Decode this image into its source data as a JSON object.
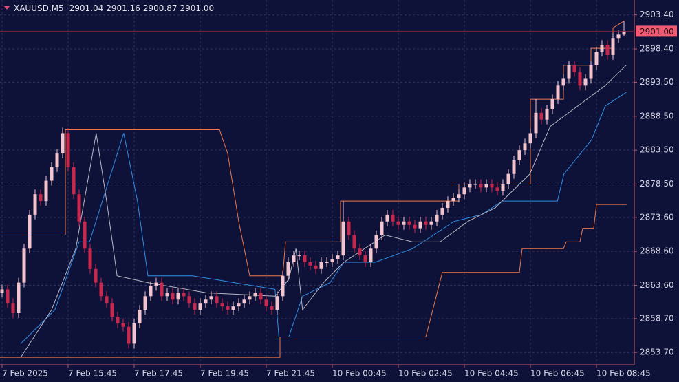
{
  "chart_data": {
    "type": "candlestick",
    "title": "XAUUSD,M5",
    "quote": [
      2901.04,
      2901.16,
      2900.87,
      {
        "value": 2901,
        "label": "2901.00"
      }
    ],
    "last_price": {
      "value": 2901,
      "label": "2901.00"
    },
    "up_color": "#f2c4d0",
    "down_color": "#c8284f",
    "grid": true,
    "xlim": [
      -0.375,
      114.875
    ],
    "ylim": [
      2851.9,
      2905.6
    ],
    "xticks": [
      {
        "value": 0,
        "label": "7 Feb 2025"
      },
      {
        "value": 12,
        "label": "7 Feb 15:45"
      },
      {
        "value": 24,
        "label": "7 Feb 17:45"
      },
      {
        "value": 36,
        "label": "7 Feb 19:45"
      },
      {
        "value": 48,
        "label": "7 Feb 21:45"
      },
      {
        "value": 60,
        "label": "10 Feb 00:45"
      },
      {
        "value": 72,
        "label": "10 Feb 02:45"
      },
      {
        "value": 84,
        "label": "10 Feb 04:45"
      },
      {
        "value": 96,
        "label": "10 Feb 06:45"
      },
      {
        "value": 108,
        "label": "10 Feb 08:45"
      }
    ],
    "yticks": [
      {
        "value": 2903.4,
        "label": "2903.40"
      },
      {
        "value": 2898.4,
        "label": "2898.40"
      },
      {
        "value": 2893.5,
        "label": "2893.50"
      },
      {
        "value": 2888.5,
        "label": "2888.50"
      },
      {
        "value": 2883.5,
        "label": "2883.50"
      },
      {
        "value": 2878.5,
        "label": "2878.50"
      },
      {
        "value": 2873.6,
        "label": "2873.60"
      },
      {
        "value": 2868.6,
        "label": "2868.60"
      },
      {
        "value": 2863.6,
        "label": "2863.60"
      },
      {
        "value": 2858.7,
        "label": "2858.70"
      },
      {
        "value": 2853.7,
        "label": "2853.70"
      }
    ],
    "open": [
      2862.5,
      2863,
      2861,
      2859.5,
      2864,
      2869,
      2874,
      2877,
      2876,
      2879,
      2881,
      2883,
      2886,
      2881,
      2877,
      2873,
      2869,
      2866,
      2864,
      2862,
      2861,
      2859,
      2858,
      2857.5,
      2855,
      2858,
      2860,
      2862,
      2863.5,
      2864,
      2862,
      2862.5,
      2861.5,
      2862.5,
      2862,
      2861,
      2860,
      2861,
      2861.5,
      2862,
      2861,
      2860.5,
      2860,
      2860.5,
      2861,
      2861.5,
      2862,
      2862.5,
      2861.5,
      2860.5,
      2860,
      2862,
      2865,
      2867,
      2868,
      2868,
      2867,
      2866.5,
      2866,
      2867,
      2867,
      2867.5,
      2868,
      2873,
      2871,
      2869,
      2868,
      2867,
      2869,
      2871,
      2873,
      2874,
      2873,
      2872.5,
      2873,
      2872.5,
      2872,
      2873,
      2872.5,
      2873,
      2874,
      2875,
      2876,
      2876.5,
      2877,
      2878,
      2878.5,
      2878.5,
      2878,
      2878.5,
      2878,
      2877.5,
      2878.5,
      2880,
      2882,
      2883.5,
      2884.5,
      2886,
      2889,
      2888,
      2889.5,
      2891,
      2893,
      2894,
      2896,
      2895,
      2893,
      2894,
      2896,
      2898,
      2899,
      2897.5,
      2900,
      2900.5
    ],
    "high": [
      2863.7,
      2863.7,
      2861.7,
      2864.7,
      2869.7,
      2874.7,
      2877.7,
      2877.7,
      2879.7,
      2881.7,
      2883.7,
      2886.8,
      2886.7,
      2881.7,
      2877.7,
      2873.7,
      2869.7,
      2866.7,
      2864.7,
      2862.7,
      2861.7,
      2859.7,
      2858.7,
      2858.2,
      2858.7,
      2860.7,
      2862.7,
      2864.2,
      2864.7,
      2864.7,
      2863.2,
      2863.2,
      2863.2,
      2863.2,
      2862.7,
      2861.7,
      2861.7,
      2862.2,
      2862.7,
      2862.7,
      2861.7,
      2861.2,
      2861.2,
      2861.7,
      2862.2,
      2862.7,
      2863.2,
      2863.2,
      2862.2,
      2861.2,
      2862.7,
      2865.7,
      2867.7,
      2868.7,
      2868.7,
      2868.7,
      2867.7,
      2867.2,
      2867.7,
      2867.7,
      2868.2,
      2868.7,
      2876,
      2873.7,
      2871.7,
      2869.7,
      2868.7,
      2869.7,
      2871.7,
      2873.7,
      2874.7,
      2874.7,
      2873.7,
      2873.7,
      2873.7,
      2873.2,
      2873.7,
      2873.7,
      2873.7,
      2874.7,
      2875.7,
      2876.7,
      2877.2,
      2877.7,
      2878.7,
      2879.2,
      2879.2,
      2879.2,
      2879.2,
      2879.2,
      2878.7,
      2879.2,
      2880.7,
      2882.7,
      2884.2,
      2885.2,
      2886.7,
      2891,
      2889.7,
      2890.2,
      2891.7,
      2893.7,
      2894.7,
      2896.7,
      2896.7,
      2895.7,
      2894.7,
      2896.7,
      2898.7,
      2899.7,
      2899.7,
      2900.7,
      2901.2,
      2902.5
    ],
    "low": [
      2861.8,
      2860.3,
      2858.8,
      2858.8,
      2863.3,
      2868.3,
      2873.3,
      2875.3,
      2875.3,
      2878.3,
      2880.3,
      2882.3,
      2880.3,
      2876.3,
      2872.3,
      2868.3,
      2865.3,
      2863.3,
      2861.3,
      2860.3,
      2858.3,
      2857.3,
      2856.8,
      2854.3,
      2854.3,
      2857.3,
      2859.3,
      2861.3,
      2862.8,
      2861.3,
      2861.3,
      2860.8,
      2860.8,
      2861.3,
      2860.3,
      2859.3,
      2859.3,
      2860.3,
      2860.8,
      2860.3,
      2859.8,
      2859.3,
      2859.3,
      2859.8,
      2860.3,
      2860.8,
      2861.3,
      2860.8,
      2859.8,
      2859.3,
      2859.3,
      2861.3,
      2864.3,
      2866.3,
      2867.3,
      2866.3,
      2865.8,
      2865.3,
      2865.3,
      2866.3,
      2866.3,
      2866.8,
      2867.3,
      2870.3,
      2868.3,
      2867.3,
      2866.3,
      2866.3,
      2868.3,
      2870.3,
      2872.3,
      2872.3,
      2871.8,
      2871.8,
      2871.8,
      2871.3,
      2871.3,
      2871.8,
      2871.8,
      2872.3,
      2873.3,
      2874.3,
      2875.3,
      2875.8,
      2876.3,
      2877.3,
      2877.8,
      2877.3,
      2877.3,
      2877.3,
      2876.8,
      2876.8,
      2877.8,
      2879.3,
      2881.3,
      2882.8,
      2883.8,
      2885.3,
      2887.3,
      2887.3,
      2888.8,
      2890.3,
      2892.3,
      2893.3,
      2894.3,
      2892.3,
      2892.3,
      2893.3,
      2895.3,
      2897.3,
      2896.8,
      2896.8,
      2899.3,
      2900.3
    ],
    "close": [
      2863,
      2861,
      2859.5,
      2864,
      2869,
      2874,
      2877,
      2876,
      2879,
      2881,
      2883,
      2886,
      2881,
      2877,
      2873,
      2869,
      2866,
      2864,
      2862,
      2861,
      2859,
      2858,
      2857.5,
      2855,
      2858,
      2860,
      2862,
      2863.5,
      2864,
      2862,
      2862.5,
      2861.5,
      2862.5,
      2862,
      2861,
      2860,
      2861,
      2861.5,
      2862,
      2861,
      2860.5,
      2860,
      2860.5,
      2861,
      2861.5,
      2862,
      2862.5,
      2861.5,
      2860.5,
      2860,
      2862,
      2865,
      2867,
      2868,
      2868,
      2867,
      2866.5,
      2866,
      2867,
      2867,
      2867.5,
      2868,
      2873,
      2871,
      2869,
      2868,
      2867,
      2869,
      2871,
      2873,
      2874,
      2873,
      2872.5,
      2873,
      2872.5,
      2872,
      2873,
      2872.5,
      2873,
      2874,
      2875,
      2876,
      2876.5,
      2877,
      2878,
      2878.5,
      2878.5,
      2878,
      2878.5,
      2878,
      2877.5,
      2878.5,
      2880,
      2882,
      2883.5,
      2884.5,
      2886,
      2889,
      2888,
      2889.5,
      2891,
      2893,
      2894,
      2896,
      2895,
      2893,
      2894,
      2896,
      2898,
      2899,
      2897.5,
      2900,
      2900.5,
      2901
    ],
    "lines": [
      {
        "color": "#f0784a",
        "x": [
          -0.375,
          11.5,
          11.5,
          39.5,
          41,
          43,
          45,
          51,
          51.5,
          61.5,
          61.5,
          83,
          83,
          96,
          96,
          102,
          102,
          107,
          107,
          111,
          111,
          113
        ],
        "values": [
          2871,
          2871,
          2886.5,
          2886.5,
          2883,
          2873,
          2865,
          2865,
          2870,
          2870,
          2876,
          2876,
          2878.5,
          2878.5,
          2891,
          2891,
          2896,
          2896,
          2898.5,
          2898.5,
          2901.5,
          2902.5
        ]
      },
      {
        "color": "#f0784a",
        "x": [
          -0.375,
          50.5,
          50.5,
          77,
          80,
          94,
          94.5,
          102,
          102.5,
          105,
          105.5,
          107.5,
          108,
          113.5
        ],
        "values": [
          2853,
          2853,
          2856,
          2856,
          2865.5,
          2865.5,
          2869,
          2869,
          2870,
          2870,
          2872,
          2872,
          2875.5,
          2875.5
        ]
      },
      {
        "color": "#2f8fe8",
        "x": [
          3.4,
          9.6,
          14,
          15.9,
          22.1,
          24.6,
          26.5,
          34.6,
          38.4,
          49.6,
          50.3,
          52.1,
          54.6,
          59.6,
          62.1,
          67.8,
          74.6,
          78.4,
          82.1,
          87.1,
          90.9,
          100.9,
          102.1,
          107.1,
          109.6,
          113.4
        ],
        "values": [
          2855,
          2860,
          2870,
          2870,
          2886,
          2876,
          2865,
          2865,
          2864.5,
          2863,
          2856,
          2856,
          2862,
          2864,
          2867,
          2867,
          2869,
          2871,
          2873,
          2874,
          2876,
          2876,
          2880,
          2885,
          2890,
          2892
        ]
      },
      {
        "color": "#b8b8c4",
        "x": [
          3.4,
          9,
          13.4,
          17.1,
          19,
          20.9,
          26.5,
          37.1,
          49.6,
          52.1,
          53.4,
          54.6,
          58.4,
          62.1,
          69.6,
          74.6,
          79.6,
          84.6,
          89.6,
          95.9,
          99.6,
          104.6,
          109.6,
          113.4
        ],
        "values": [
          2853,
          2860,
          2869,
          2886,
          2876,
          2865,
          2864,
          2862.5,
          2862,
          2864.5,
          2869,
          2860,
          2864,
          2867,
          2871,
          2870,
          2870,
          2873,
          2875,
          2880,
          2887,
          2890,
          2893,
          2896
        ]
      }
    ]
  }
}
